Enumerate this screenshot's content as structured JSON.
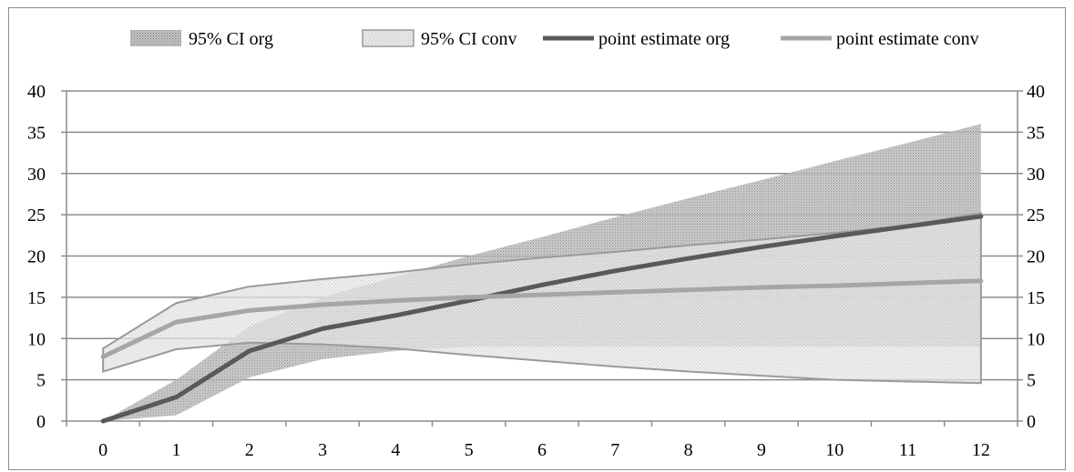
{
  "chart_data": {
    "type": "area",
    "title": "",
    "xlabel": "",
    "ylabel": "",
    "x": [
      0,
      1,
      2,
      3,
      4,
      5,
      6,
      7,
      8,
      9,
      10,
      11,
      12
    ],
    "xlim": [
      0,
      12
    ],
    "ylim": [
      0,
      40
    ],
    "yticks": [
      0,
      5,
      10,
      15,
      20,
      25,
      30,
      35,
      40
    ],
    "xticks": [
      0,
      1,
      2,
      3,
      4,
      5,
      6,
      7,
      8,
      9,
      10,
      11,
      12
    ],
    "grid": "horizontal",
    "secondary_y_axis": true,
    "legend_position": "top",
    "series": [
      {
        "name": "95% CI org",
        "kind": "band",
        "lower": [
          0,
          0.7,
          5.3,
          7.5,
          8.5,
          9.0,
          9.0,
          9.0,
          9.0,
          9.0,
          9.0,
          9.0,
          9.0
        ],
        "upper": [
          0,
          5.0,
          11.5,
          15.0,
          17.5,
          20.0,
          22.3,
          24.7,
          27.0,
          29.2,
          31.5,
          33.7,
          36.0
        ],
        "color": "#8c8c8c"
      },
      {
        "name": "95% CI conv",
        "kind": "band",
        "lower": [
          6.0,
          8.7,
          9.5,
          9.3,
          8.8,
          8.0,
          7.3,
          6.6,
          6.0,
          5.5,
          5.0,
          4.8,
          4.6
        ],
        "upper": [
          8.8,
          14.3,
          16.3,
          17.2,
          18.0,
          19.0,
          19.8,
          20.5,
          21.3,
          22.0,
          22.8,
          23.7,
          25.2
        ],
        "color": "#d0d0d0"
      },
      {
        "name": "point estimate org",
        "kind": "line",
        "values": [
          0,
          2.9,
          8.5,
          11.2,
          12.8,
          14.6,
          16.5,
          18.2,
          19.7,
          21.1,
          22.4,
          23.6,
          24.8
        ],
        "color": "#595959"
      },
      {
        "name": "point estimate conv",
        "kind": "line",
        "values": [
          7.8,
          12.0,
          13.4,
          14.1,
          14.6,
          15.0,
          15.3,
          15.6,
          15.9,
          16.2,
          16.4,
          16.7,
          17.0
        ],
        "color": "#a6a6a6"
      }
    ]
  }
}
